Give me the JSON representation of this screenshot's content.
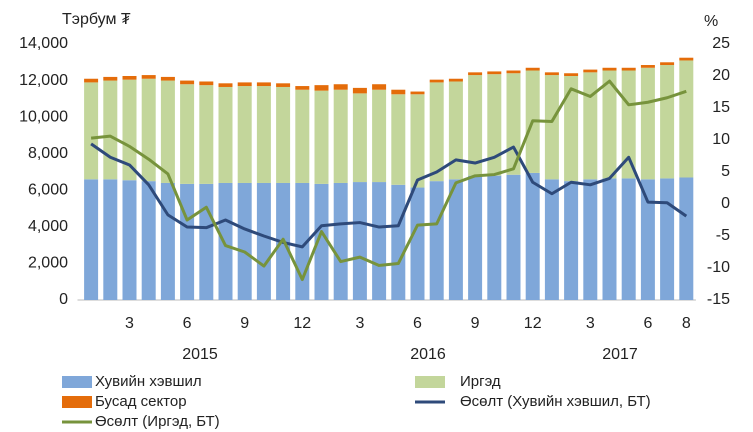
{
  "chart_data": {
    "type": "bar",
    "y_label": "Тэрбум ₮",
    "y2_label": "%",
    "categories": [
      null,
      null,
      "3",
      null,
      null,
      "6",
      null,
      null,
      "9",
      null,
      null,
      "12",
      null,
      null,
      "3",
      null,
      null,
      "6",
      null,
      null,
      "9",
      null,
      null,
      "12",
      null,
      null,
      "3",
      null,
      null,
      "6",
      null,
      "8"
    ],
    "group_labels": [
      "2015",
      "2016",
      "2017"
    ],
    "series": [
      {
        "name": "Хувийн хэвшил",
        "type": "bar",
        "color": "#7fa7d9",
        "values": [
          6600,
          6600,
          6550,
          6500,
          6400,
          6350,
          6350,
          6400,
          6400,
          6400,
          6400,
          6400,
          6350,
          6400,
          6450,
          6450,
          6300,
          6150,
          6500,
          6600,
          6800,
          6800,
          6850,
          6950,
          6600,
          6500,
          6600,
          6650,
          6650,
          6600,
          6650,
          6700
        ]
      },
      {
        "name": "Иргэд",
        "type": "bar",
        "color": "#c3d69b",
        "values": [
          5300,
          5400,
          5500,
          5600,
          5600,
          5450,
          5400,
          5250,
          5300,
          5300,
          5250,
          5100,
          5100,
          5100,
          4850,
          5050,
          4950,
          5100,
          5400,
          5350,
          5500,
          5550,
          5550,
          5600,
          5700,
          5750,
          5850,
          5900,
          5900,
          6100,
          6200,
          6400
        ]
      },
      {
        "name": "Бусад сектор",
        "type": "bar",
        "color": "#e46c0a",
        "values": [
          200,
          200,
          200,
          200,
          200,
          200,
          200,
          200,
          200,
          200,
          200,
          200,
          300,
          300,
          300,
          300,
          250,
          150,
          150,
          150,
          150,
          150,
          150,
          150,
          150,
          150,
          150,
          150,
          150,
          150,
          150,
          150
        ]
      },
      {
        "name": "Өсөлт (Хувийн хэвшил, БТ)",
        "type": "line",
        "axis": "y2",
        "color": "#2e4a7a",
        "values": [
          9.4,
          7.3,
          6.1,
          3,
          -1.7,
          -3.6,
          -3.7,
          -2.5,
          -3.9,
          -5.0,
          -6.0,
          -6.7,
          -3.4,
          -3.1,
          -2.9,
          -3.6,
          -3.4,
          3.75,
          5,
          6.9,
          6.4,
          7.3,
          8.9,
          3.4,
          1.6,
          3.4,
          3,
          4,
          7.3,
          0.3,
          0.2,
          -1.9
        ]
      },
      {
        "name": "Өсөлт (Иргэд, БТ)",
        "type": "line",
        "axis": "y2",
        "color": "#77933c",
        "values": [
          10.3,
          10.6,
          9.0,
          7.0,
          4.7,
          -2.5,
          -0.5,
          -6.5,
          -7.5,
          -9.7,
          -5.5,
          -11.8,
          -4.3,
          -9.0,
          -8.3,
          -9.6,
          -9.3,
          -3.3,
          -3.1,
          3.3,
          4.4,
          4.6,
          5.5,
          13.0,
          12.9,
          18.0,
          16.8,
          19.2,
          15.5,
          15.9,
          16.6,
          17.6
        ]
      }
    ],
    "ylim": [
      0,
      14000
    ],
    "yticks": [
      0,
      {
        "value": 2000,
        "label": "2,000"
      },
      {
        "value": 4000,
        "label": "4,000"
      },
      {
        "value": 6000,
        "label": "6,000"
      },
      {
        "value": 8000,
        "label": "8,000"
      },
      {
        "value": 10000,
        "label": "10,000"
      },
      {
        "value": 12000,
        "label": "12,000"
      },
      {
        "value": 14000,
        "label": "14,000"
      }
    ],
    "y2lim": [
      -15,
      25
    ],
    "y2ticks": [
      -15,
      -10,
      -5,
      0,
      5,
      10,
      15,
      20,
      25
    ],
    "grid": false
  }
}
